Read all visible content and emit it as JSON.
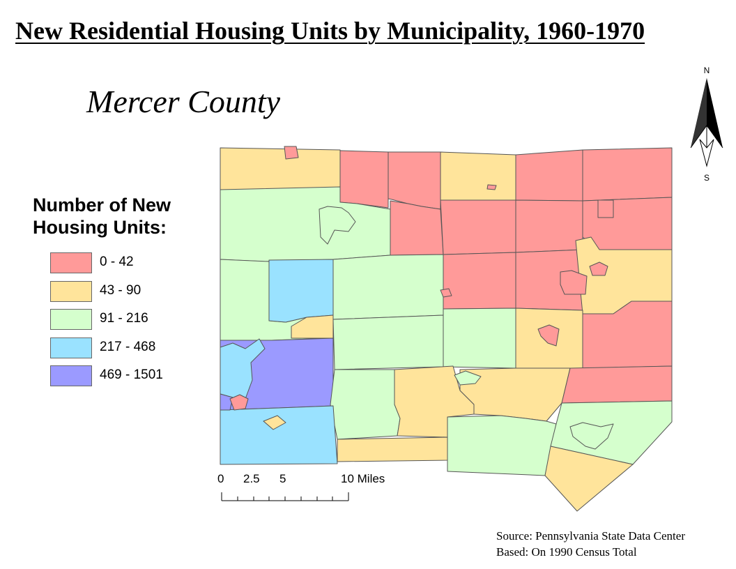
{
  "title": "New Residential Housing Units by Municipality, 1960-1970",
  "subtitle": "Mercer County",
  "legend": {
    "title_line1": "Number of New",
    "title_line2": "Housing Units:",
    "items": [
      {
        "label": "0 - 42",
        "color": "#ff9a99"
      },
      {
        "label": "43 - 90",
        "color": "#ffe49b"
      },
      {
        "label": "91 - 216",
        "color": "#d5ffcd"
      },
      {
        "label": "217 - 468",
        "color": "#9ae2ff"
      },
      {
        "label": "469 - 1501",
        "color": "#9b9aff"
      }
    ]
  },
  "north_arrow": {
    "n": "N",
    "s": "S",
    "icon": "north-arrow-icon"
  },
  "scale_bar": {
    "ticks": [
      "0",
      "2.5",
      "5",
      "10 Miles"
    ]
  },
  "source": {
    "line1": "Source: Pennsylvania State Data Center",
    "line2": "Based: On 1990 Census Total"
  }
}
